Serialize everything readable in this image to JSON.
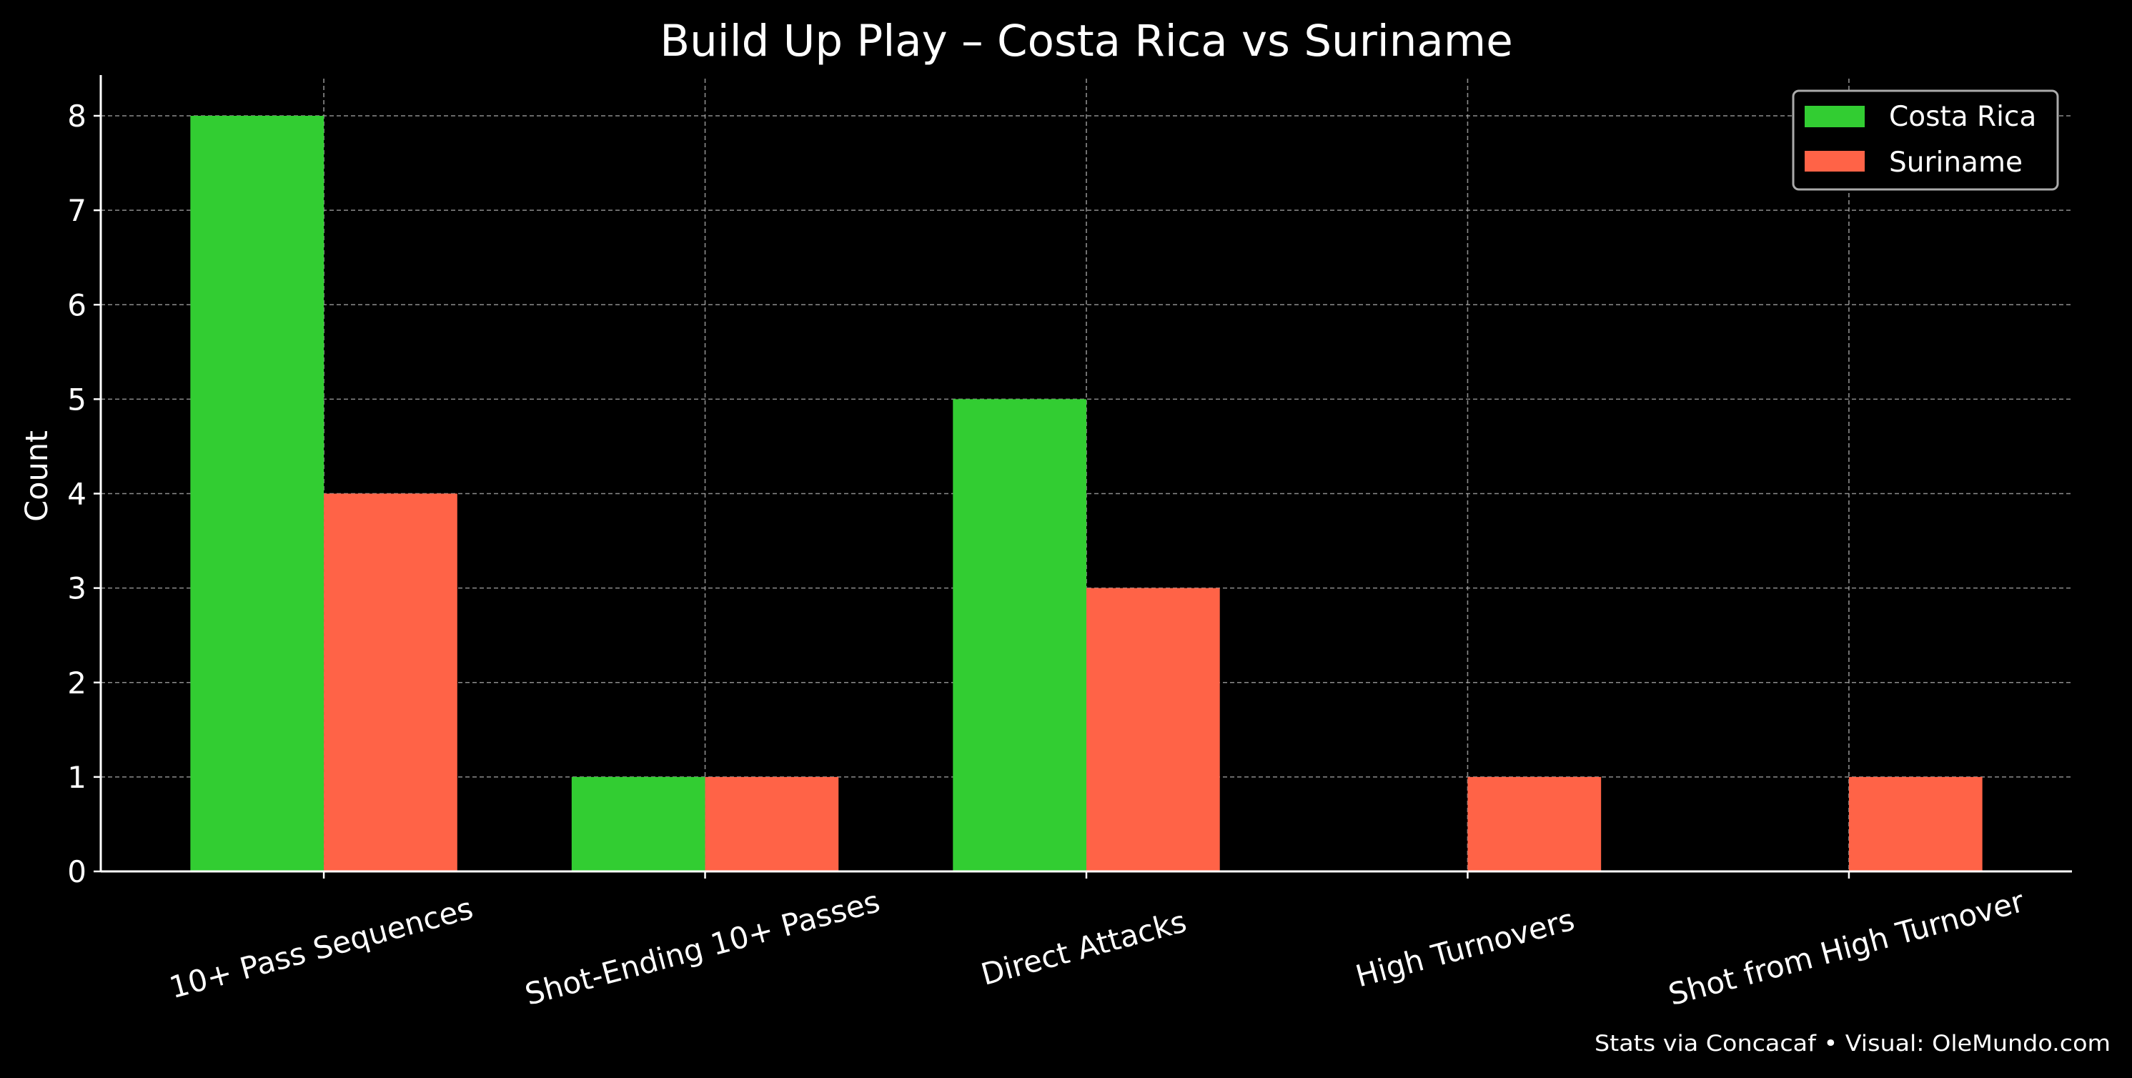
{
  "chart_data": {
    "type": "bar",
    "title": "Build Up Play – Costa Rica vs Suriname",
    "xlabel": "",
    "ylabel": "Count",
    "categories": [
      "10+ Pass Sequences",
      "Shot-Ending 10+ Passes",
      "Direct Attacks",
      "High Turnovers",
      "Shot from High Turnover"
    ],
    "series": [
      {
        "name": "Costa Rica",
        "color": "#32CD32",
        "values": [
          8,
          1,
          5,
          0,
          0
        ]
      },
      {
        "name": "Suriname",
        "color": "#FF6347",
        "values": [
          4,
          1,
          3,
          1,
          1
        ]
      }
    ],
    "yticks": [
      "0",
      "1",
      "2",
      "3",
      "4",
      "5",
      "6",
      "7",
      "8"
    ],
    "ylim": [
      0,
      8.4
    ],
    "grid": true,
    "legend_position": "top-right",
    "background": "#000000",
    "footer": "Stats via Concacaf • Visual: OleMundo.com"
  }
}
